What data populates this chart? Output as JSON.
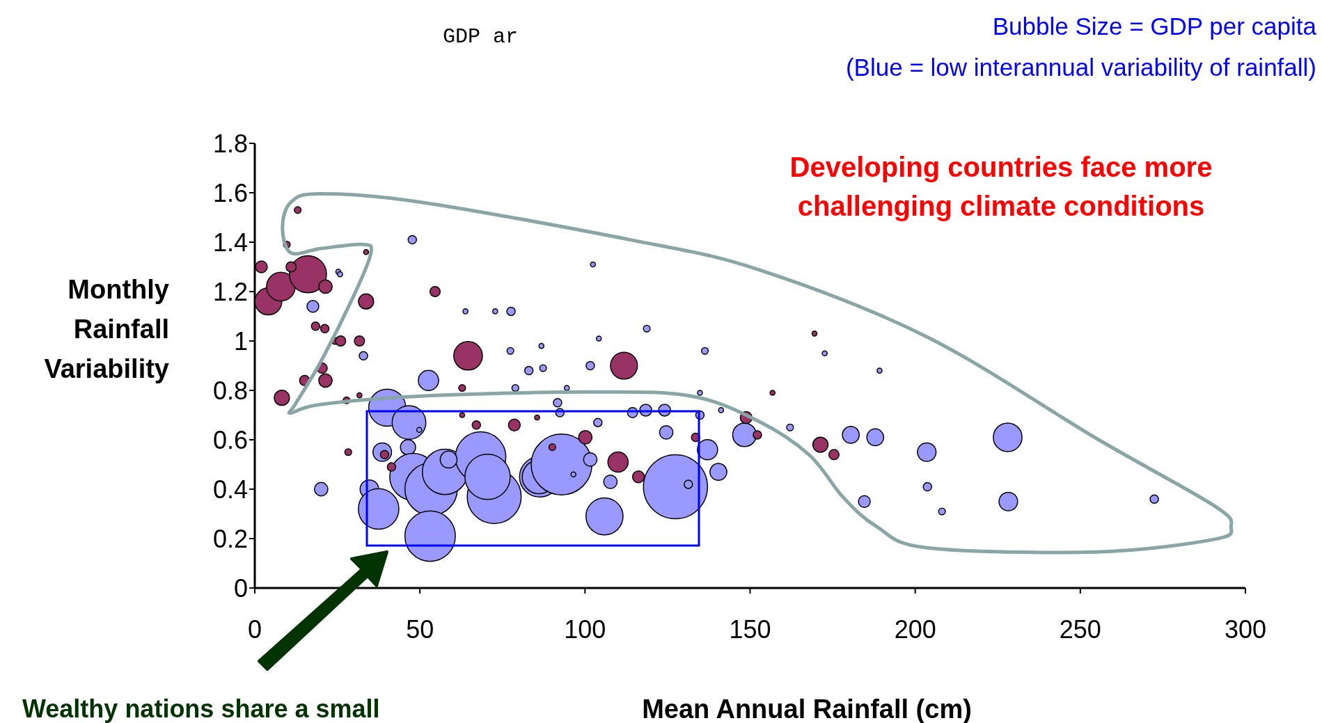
{
  "chart_data": {
    "type": "bubble",
    "title": "GDP ar",
    "xlabel": "Mean Annual Rainfall (cm)",
    "ylabel": "Monthly Rainfall Variability",
    "xlim": [
      0,
      300
    ],
    "xticks": [
      0,
      50,
      100,
      150,
      200,
      250,
      300
    ],
    "ylim": [
      0,
      1.8
    ],
    "yticks": [
      0,
      0.2,
      0.4,
      0.6,
      0.8,
      1,
      1.2,
      1.4,
      1.6,
      1.8
    ],
    "annotations": [
      "Bubble Size = GDP per capita",
      "(Blue = low interannual variability of rainfall)",
      "Developing countries face more challenging climate conditions",
      "Wealthy nations share a small"
    ],
    "series": [
      {
        "color": "#9999ff",
        "x": [
          17.6,
          25.3,
          25.8,
          32.9,
          47.7,
          102.4,
          63.8,
          72.8,
          77.6,
          118.7,
          104.2,
          77.4,
          86.8,
          83.0,
          87.3,
          101.6,
          78.9,
          94.5,
          136.3,
          172.6,
          189.2,
          52.6,
          40.1,
          46.7,
          49.8,
          91.7,
          92.4,
          103.9,
          114.4,
          118.4,
          124.1,
          134.8,
          141.2,
          134.8,
          124.6,
          137.1,
          140.4,
          148.3,
          162.1,
          180.5,
          187.9,
          203.5,
          203.7,
          208.1,
          228.0,
          228.2,
          272.4,
          184.6,
          20.1,
          38.6,
          46.4,
          34.7,
          37.5,
          48.0,
          53.4,
          53.1,
          57.6,
          68.4,
          72.5,
          70.5,
          86.3,
          86.1,
          92.9,
          96.5,
          101.6,
          107.7,
          105.9,
          127.4,
          131.3,
          58.7
        ],
        "values": [
          1.14,
          1.28,
          1.27,
          0.94,
          1.41,
          1.31,
          1.12,
          1.12,
          1.12,
          1.05,
          1.01,
          0.96,
          0.98,
          0.88,
          0.89,
          0.9,
          0.81,
          0.81,
          0.96,
          0.95,
          0.88,
          0.84,
          0.73,
          0.67,
          0.64,
          0.75,
          0.71,
          0.67,
          0.71,
          0.72,
          0.72,
          0.7,
          0.72,
          0.79,
          0.63,
          0.56,
          0.47,
          0.62,
          0.65,
          0.62,
          0.61,
          0.55,
          0.41,
          0.31,
          0.61,
          0.35,
          0.36,
          0.35,
          0.4,
          0.55,
          0.57,
          0.4,
          0.32,
          0.45,
          0.4,
          0.21,
          0.47,
          0.53,
          0.37,
          0.45,
          0.45,
          0.45,
          0.5,
          0.46,
          0.52,
          0.43,
          0.29,
          0.41,
          0.42,
          0.52
        ],
        "sizes": [
          0.034,
          0.006,
          0.006,
          0.017,
          0.017,
          0.006,
          0.006,
          0.006,
          0.017,
          0.011,
          0.006,
          0.011,
          0.006,
          0.017,
          0.011,
          0.017,
          0.011,
          0.006,
          0.011,
          0.006,
          0.006,
          0.1,
          0.335,
          0.277,
          0.006,
          0.017,
          0.017,
          0.017,
          0.025,
          0.034,
          0.034,
          0.017,
          0.006,
          0.006,
          0.044,
          0.1,
          0.069,
          0.136,
          0.011,
          0.069,
          0.069,
          0.084,
          0.017,
          0.011,
          0.2,
          0.084,
          0.017,
          0.034,
          0.044,
          0.084,
          0.056,
          0.084,
          0.4,
          0.54,
          0.67,
          0.62,
          0.5,
          0.62,
          0.71,
          0.5,
          0.4,
          0.277,
          0.9,
          0.006,
          0.044,
          0.044,
          0.335,
          1,
          0.017,
          0.069
        ]
      },
      {
        "color": "#993366",
        "x": [
          2.0,
          4.1,
          7.9,
          16.1,
          21.4,
          13.0,
          9.7,
          33.7,
          11.0,
          18.4,
          21.2,
          33.7,
          24.3,
          26.0,
          31.7,
          20.4,
          21.4,
          15.1,
          8.2,
          27.8,
          31.7,
          54.6,
          64.6,
          111.8,
          62.8,
          28.3,
          39.3,
          41.4,
          78.6,
          67.1,
          90.1,
          100.1,
          110.0,
          116.2,
          133.5,
          148.8,
          152.2,
          156.8,
          169.5,
          171.3,
          175.4,
          62.8,
          85.5
        ],
        "values": [
          1.3,
          1.16,
          1.22,
          1.27,
          1.22,
          1.53,
          1.39,
          1.36,
          1.3,
          1.06,
          1.05,
          1.16,
          1.0,
          1.0,
          1.0,
          0.89,
          0.84,
          0.84,
          0.77,
          0.76,
          0.78,
          1.2,
          0.94,
          0.9,
          0.81,
          0.55,
          0.54,
          0.49,
          0.66,
          0.66,
          0.57,
          0.61,
          0.51,
          0.45,
          0.61,
          0.69,
          0.62,
          0.79,
          1.03,
          0.58,
          0.54,
          0.7,
          0.69
        ],
        "sizes": [
          0.034,
          0.177,
          0.2,
          0.335,
          0.044,
          0.011,
          0.011,
          0.006,
          0.025,
          0.017,
          0.017,
          0.056,
          0.011,
          0.025,
          0.025,
          0.025,
          0.044,
          0.025,
          0.056,
          0.011,
          0.006,
          0.025,
          0.2,
          0.177,
          0.011,
          0.011,
          0.017,
          0.017,
          0.034,
          0.017,
          0.011,
          0.044,
          0.1,
          0.034,
          0.017,
          0.034,
          0.017,
          0.006,
          0.006,
          0.056,
          0.025,
          0.006,
          0.006
        ]
      }
    ]
  }
}
